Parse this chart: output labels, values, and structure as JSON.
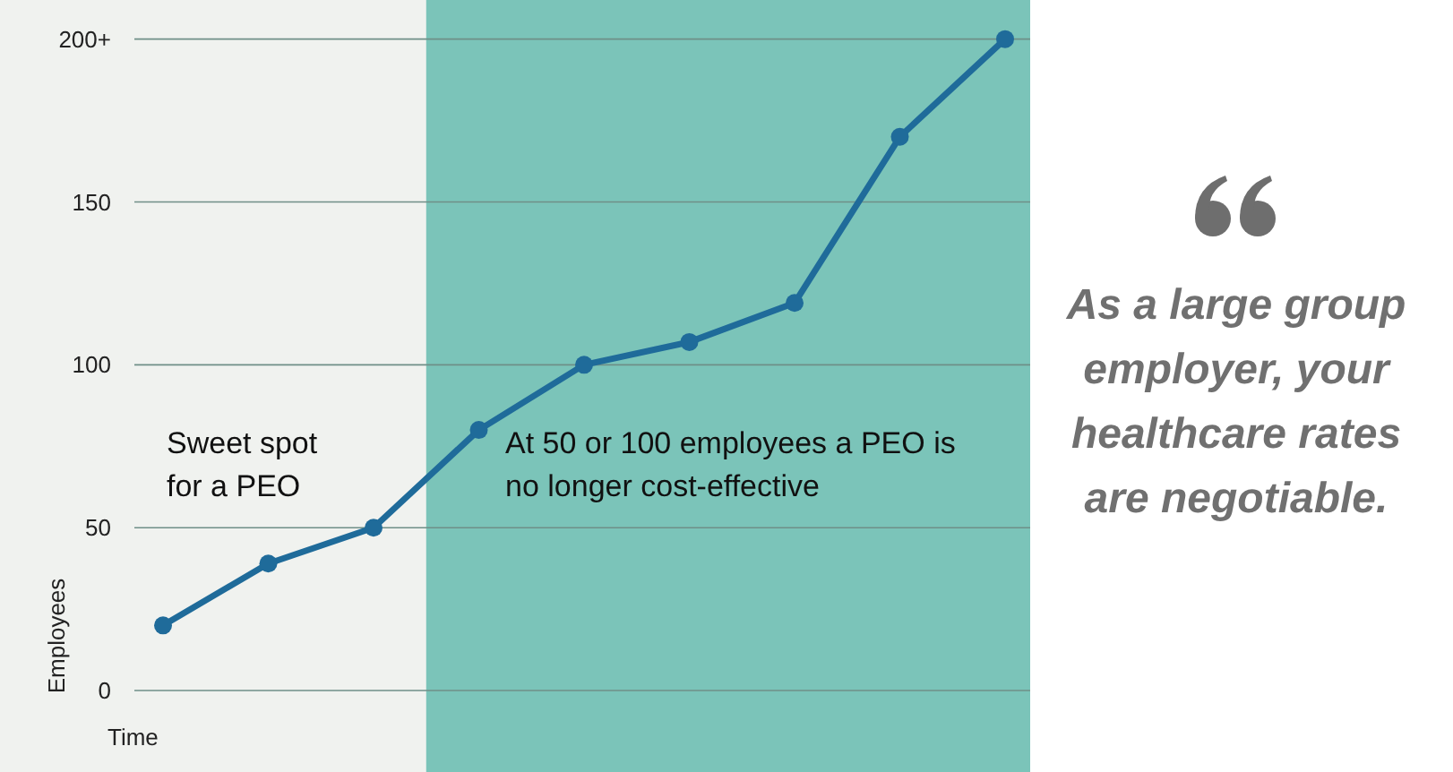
{
  "chart_data": {
    "type": "line",
    "xlabel": "Time",
    "ylabel": "Employees",
    "categories": [
      null,
      null,
      null,
      null,
      null,
      null,
      null,
      null,
      null
    ],
    "ylim": [
      -25,
      212
    ],
    "yticks": [
      0,
      50,
      100,
      150,
      {
        "value": 200,
        "label": "200+"
      }
    ],
    "tick_labels": "y",
    "grid": "y",
    "marker": "circle",
    "series": [
      {
        "color": "#1f6b9a",
        "values": [
          20,
          39,
          50,
          80,
          100,
          107,
          119,
          170,
          200
        ]
      }
    ],
    "annotations": [
      "Sweet spot for a PEO",
      "At 50 or 100 employees a PEO is no longer cost-effective",
      "As a large group employer, your healthcare rates are negotiable."
    ]
  }
}
